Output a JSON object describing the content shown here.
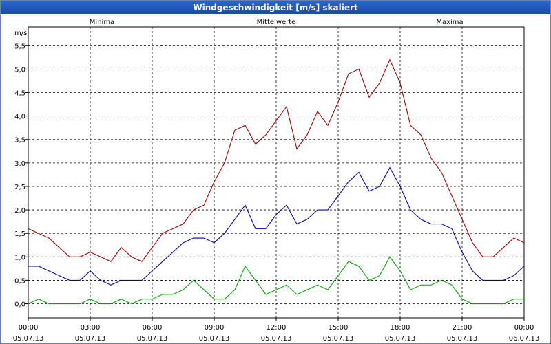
{
  "window": {
    "title": "Windgeschwindigkeit [m/s] skaliert"
  },
  "chart_data": {
    "type": "line",
    "title": "Windgeschwindigkeit [m/s] skaliert",
    "ylabel": "m/s",
    "xlabel": "",
    "ylim": [
      -0.3,
      5.9
    ],
    "xlim": [
      0,
      24
    ],
    "yticks": [
      "0,0",
      "0,5",
      "1,0",
      "1,5",
      "2,0",
      "2,5",
      "3,0",
      "3,5",
      "4,0",
      "4,5",
      "5,0",
      "5,5"
    ],
    "ytick_values": [
      0,
      0.5,
      1,
      1.5,
      2,
      2.5,
      3,
      3.5,
      4,
      4.5,
      5,
      5.5
    ],
    "xticks": [
      {
        "time": "00:00",
        "date": "05.07.13"
      },
      {
        "time": "03:00",
        "date": "05.07.13"
      },
      {
        "time": "06:00",
        "date": "05.07.13"
      },
      {
        "time": "09:00",
        "date": "05.07.13"
      },
      {
        "time": "12:00",
        "date": "05.07.13"
      },
      {
        "time": "15:00",
        "date": "05.07.13"
      },
      {
        "time": "18:00",
        "date": "05.07.13"
      },
      {
        "time": "21:00",
        "date": "05.07.13"
      },
      {
        "time": "00:00",
        "date": "06.07.13"
      }
    ],
    "xtick_values": [
      0,
      3,
      6,
      9,
      12,
      15,
      18,
      21,
      24
    ],
    "legend": [
      "Minima",
      "Mittelwerte",
      "Maxima"
    ],
    "colors": {
      "Minima": "#00a000",
      "Mittelwerte": "#0000b0",
      "Maxima": "#a00000"
    },
    "x_hours": [
      0,
      0.5,
      1,
      1.5,
      2,
      2.5,
      3,
      3.5,
      4,
      4.5,
      5,
      5.5,
      6,
      6.5,
      7,
      7.5,
      8,
      8.5,
      9,
      9.5,
      10,
      10.5,
      11,
      11.5,
      12,
      12.5,
      13,
      13.5,
      14,
      14.5,
      15,
      15.5,
      16,
      16.5,
      17,
      17.5,
      18,
      18.5,
      19,
      19.5,
      20,
      20.5,
      21,
      21.5,
      22,
      22.5,
      23,
      23.5,
      24
    ],
    "series": [
      {
        "name": "Maxima",
        "values": [
          1.6,
          1.5,
          1.4,
          1.2,
          1.0,
          1.0,
          1.1,
          1.0,
          0.9,
          1.2,
          1.0,
          0.9,
          1.2,
          1.5,
          1.6,
          1.7,
          2.0,
          2.1,
          2.6,
          3.0,
          3.7,
          3.8,
          3.4,
          3.6,
          3.9,
          4.2,
          3.3,
          3.6,
          4.1,
          3.8,
          4.3,
          4.9,
          5.0,
          4.4,
          4.7,
          5.2,
          4.7,
          3.8,
          3.6,
          3.1,
          2.8,
          2.3,
          1.8,
          1.3,
          1.0,
          1.0,
          1.2,
          1.4,
          1.3
        ]
      },
      {
        "name": "Mittelwerte",
        "values": [
          0.8,
          0.8,
          0.7,
          0.6,
          0.5,
          0.5,
          0.7,
          0.5,
          0.4,
          0.5,
          0.5,
          0.5,
          0.7,
          0.9,
          1.1,
          1.3,
          1.4,
          1.4,
          1.3,
          1.5,
          1.8,
          2.1,
          1.6,
          1.6,
          1.9,
          2.1,
          1.7,
          1.8,
          2.0,
          2.0,
          2.3,
          2.6,
          2.8,
          2.4,
          2.5,
          2.9,
          2.5,
          2.0,
          1.8,
          1.7,
          1.7,
          1.6,
          1.1,
          0.7,
          0.5,
          0.5,
          0.5,
          0.6,
          0.8
        ]
      },
      {
        "name": "Minima",
        "values": [
          0.0,
          0.1,
          0.0,
          0.0,
          0.0,
          0.0,
          0.1,
          0.0,
          0.0,
          0.1,
          0.0,
          0.1,
          0.1,
          0.2,
          0.2,
          0.3,
          0.5,
          0.3,
          0.1,
          0.1,
          0.3,
          0.8,
          0.5,
          0.2,
          0.3,
          0.4,
          0.2,
          0.3,
          0.4,
          0.3,
          0.6,
          0.9,
          0.8,
          0.5,
          0.6,
          1.0,
          0.7,
          0.3,
          0.4,
          0.4,
          0.5,
          0.4,
          0.1,
          0.0,
          0.0,
          0.0,
          0.0,
          0.1,
          0.1
        ]
      }
    ]
  }
}
